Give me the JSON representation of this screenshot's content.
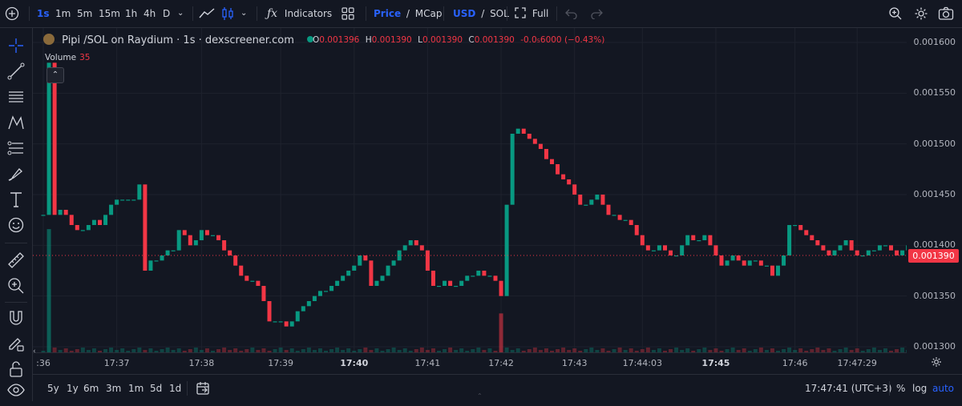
{
  "toolbar": {
    "add_icon": "plus-circle-icon",
    "intervals": [
      "1s",
      "1m",
      "5m",
      "15m",
      "1h",
      "4h",
      "D"
    ],
    "active_interval": "1s",
    "indicators_label": "Indicators",
    "price_label": "Price",
    "mcap_label": "MCap",
    "usd_label": "USD",
    "sol_label": "SOL",
    "full_label": "Full",
    "slash": "/"
  },
  "legend": {
    "title": "Pipi /SOL on Raydium · 1s · dexscreener.com",
    "o_key": "O",
    "o_val": "0.001396",
    "h_key": "H",
    "h_val": "0.001390",
    "l_key": "L",
    "l_val": "0.001390",
    "c_key": "C",
    "c_val": "0.001390",
    "change": "-0.0₅6000 (−0.43%)",
    "volume_label": "Volume",
    "volume_val": "35"
  },
  "last_price_label": "0.001390",
  "bottom": {
    "ranges": [
      "5y",
      "1y",
      "6m",
      "3m",
      "1m",
      "5d",
      "1d"
    ],
    "clock": "17:47:41 (UTC+3)",
    "percent": "%",
    "log": "log",
    "auto": "auto"
  },
  "colors": {
    "up": "#089981",
    "down": "#f23645",
    "bg": "#131722",
    "grid": "#1e222d",
    "accent": "#2962ff"
  },
  "chart_data": {
    "type": "candlestick",
    "title": "Pipi /SOL on Raydium · 1s · dexscreener.com",
    "ylim": [
      0.0013,
      0.0016
    ],
    "y_ticks": [
      "0.001600",
      "0.001550",
      "0.001500",
      "0.001450",
      "0.001400",
      "0.001350",
      "0.001300"
    ],
    "y_tick_values": [
      0.0016,
      0.00155,
      0.0015,
      0.00145,
      0.0014,
      0.00135,
      0.0013
    ],
    "x_ticks": [
      {
        "label": ":36",
        "i": 0,
        "bold": false
      },
      {
        "label": "17:37",
        "i": 13,
        "bold": false
      },
      {
        "label": "17:38",
        "i": 28,
        "bold": false
      },
      {
        "label": "17:39",
        "i": 42,
        "bold": false
      },
      {
        "label": "17:40",
        "i": 55,
        "bold": true
      },
      {
        "label": "17:41",
        "i": 68,
        "bold": false
      },
      {
        "label": "17:42",
        "i": 81,
        "bold": false
      },
      {
        "label": "17:43",
        "i": 94,
        "bold": false
      },
      {
        "label": "17:44:03",
        "i": 106,
        "bold": false
      },
      {
        "label": "17:45",
        "i": 119,
        "bold": true
      },
      {
        "label": "17:46",
        "i": 133,
        "bold": false
      },
      {
        "label": "17:47:29",
        "i": 144,
        "bold": false
      }
    ],
    "closes": [
      0.00143,
      0.00158,
      0.00143,
      0.001435,
      0.00143,
      0.00142,
      0.001415,
      0.001415,
      0.00142,
      0.001425,
      0.00142,
      0.00143,
      0.00144,
      0.001445,
      0.001445,
      0.001445,
      0.001445,
      0.00146,
      0.001375,
      0.001385,
      0.001385,
      0.00139,
      0.001395,
      0.001395,
      0.001415,
      0.00141,
      0.0014,
      0.001405,
      0.001415,
      0.00141,
      0.00141,
      0.001405,
      0.001395,
      0.00139,
      0.00138,
      0.00137,
      0.001365,
      0.001365,
      0.00136,
      0.001345,
      0.001325,
      0.001325,
      0.001325,
      0.00132,
      0.001325,
      0.001335,
      0.00134,
      0.001345,
      0.00135,
      0.001355,
      0.001355,
      0.00136,
      0.001365,
      0.00137,
      0.001375,
      0.00138,
      0.00139,
      0.001385,
      0.00136,
      0.001365,
      0.00137,
      0.00138,
      0.001385,
      0.001395,
      0.0014,
      0.001405,
      0.0014,
      0.001395,
      0.001375,
      0.00136,
      0.00136,
      0.001365,
      0.00136,
      0.00136,
      0.001365,
      0.00137,
      0.00137,
      0.001375,
      0.00137,
      0.00137,
      0.001365,
      0.00135,
      0.00144,
      0.00151,
      0.001515,
      0.00151,
      0.001505,
      0.0015,
      0.001495,
      0.001485,
      0.00148,
      0.00147,
      0.001465,
      0.00146,
      0.00145,
      0.00144,
      0.00144,
      0.001445,
      0.00145,
      0.00144,
      0.00143,
      0.00143,
      0.001425,
      0.001425,
      0.00142,
      0.00141,
      0.0014,
      0.001395,
      0.001395,
      0.0014,
      0.001395,
      0.00139,
      0.00139,
      0.0014,
      0.00141,
      0.001405,
      0.001405,
      0.00141,
      0.0014,
      0.00139,
      0.00138,
      0.001385,
      0.00139,
      0.001385,
      0.00138,
      0.001385,
      0.001385,
      0.00138,
      0.00138,
      0.00137,
      0.00138,
      0.00139,
      0.00142,
      0.00142,
      0.001415,
      0.00141,
      0.001405,
      0.0014,
      0.001395,
      0.00139,
      0.001395,
      0.0014,
      0.001405,
      0.001395,
      0.00139,
      0.00139,
      0.001395,
      0.001395,
      0.0014,
      0.0014,
      0.001395,
      0.00139,
      0.001395,
      0.0014,
      0.001395,
      0.00139
    ],
    "volume_spikes": [
      {
        "i": 1,
        "frac": 0.38
      },
      {
        "i": 81,
        "frac": 0.12
      }
    ]
  }
}
